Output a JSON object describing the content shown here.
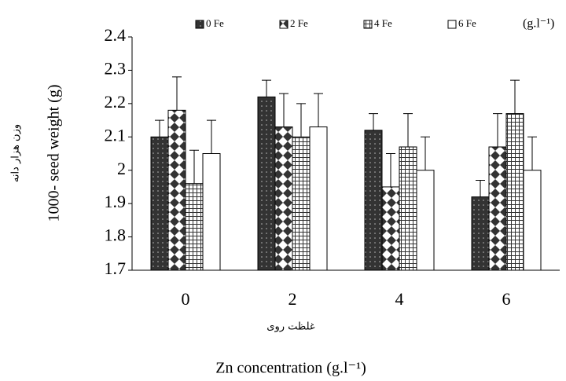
{
  "chart_data": {
    "type": "bar",
    "y_label": "1000- seed weight (g)",
    "y_label_fa": "وزن هزار دانه",
    "x_label_fa": "غلظت روی",
    "x_label": "Zn concentration (g.l⁻¹)",
    "legend_unit": "(g.l⁻¹)",
    "categories": [
      "0",
      "2",
      "4",
      "6"
    ],
    "series": [
      {
        "name": "0 Fe",
        "color": "#333333",
        "pattern": "dots",
        "values": [
          2.1,
          2.22,
          2.12,
          1.92
        ],
        "errors": [
          0.05,
          0.05,
          0.05,
          0.05
        ]
      },
      {
        "name": "2 Fe",
        "color": "#333333",
        "pattern": "diamonds",
        "values": [
          2.18,
          2.13,
          1.95,
          2.07
        ],
        "errors": [
          0.1,
          0.1,
          0.1,
          0.1
        ]
      },
      {
        "name": "4 Fe",
        "color": "#333333",
        "pattern": "grid",
        "values": [
          1.96,
          2.1,
          2.07,
          2.17
        ],
        "errors": [
          0.1,
          0.1,
          0.1,
          0.1
        ]
      },
      {
        "name": "6 Fe",
        "color": "#ffffff",
        "pattern": "none",
        "values": [
          2.05,
          2.13,
          2.0,
          2.0
        ],
        "errors": [
          0.1,
          0.1,
          0.1,
          0.1
        ]
      }
    ],
    "ylim": [
      1.7,
      2.4
    ],
    "yticks": [
      1.7,
      1.8,
      1.9,
      2,
      2.1,
      2.2,
      2.3,
      2.4
    ]
  }
}
